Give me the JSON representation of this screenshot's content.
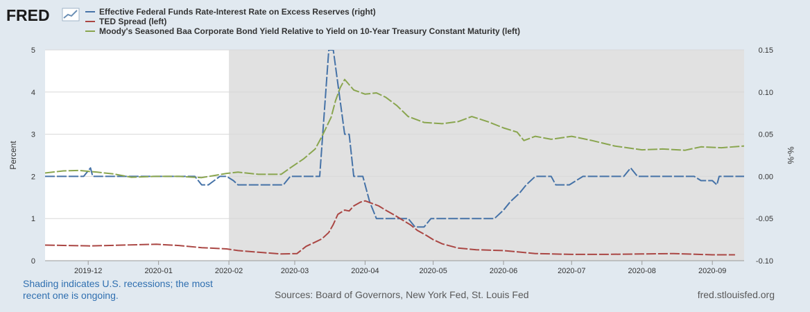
{
  "header": {
    "logo_text": "FRED",
    "logo_icon": "line-chart-icon"
  },
  "legend": [
    {
      "label": "Effective Federal Funds Rate-Interest Rate on Excess Reserves (right)",
      "color": "#4572a7"
    },
    {
      "label": "TED Spread (left)",
      "color": "#aa4643"
    },
    {
      "label": "Moody's Seasoned Baa Corporate Bond Yield Relative to Yield on 10-Year Treasury Constant Maturity (left)",
      "color": "#89a54e"
    }
  ],
  "footer": {
    "note": "Shading indicates U.S. recessions; the most recent one is ongoing.",
    "source": "Sources: Board of Governors, New York Fed, St. Louis Fed",
    "site": "fred.stlouisfed.org"
  },
  "chart_data": {
    "type": "line",
    "ylabel_left": "Percent",
    "ylabel_right": "%-%",
    "ylim_left": [
      0,
      5
    ],
    "ylim_right": [
      -0.1,
      0.15
    ],
    "yticks_left": [
      "0",
      "1",
      "2",
      "3",
      "4",
      "5"
    ],
    "yticks_right": [
      "-0.10",
      "-0.05",
      "0.00",
      "0.05",
      "0.10",
      "0.15"
    ],
    "xlim": [
      "2019-11-12",
      "2020-09-15"
    ],
    "xticks": [
      {
        "date": "2019-12-01",
        "label": "2019-12"
      },
      {
        "date": "2020-01-01",
        "label": "2020-01"
      },
      {
        "date": "2020-02-01",
        "label": "2020-02"
      },
      {
        "date": "2020-03-01",
        "label": "2020-03"
      },
      {
        "date": "2020-04-01",
        "label": "2020-04"
      },
      {
        "date": "2020-05-01",
        "label": "2020-05"
      },
      {
        "date": "2020-06-01",
        "label": "2020-06"
      },
      {
        "date": "2020-07-01",
        "label": "2020-07"
      },
      {
        "date": "2020-08-01",
        "label": "2020-08"
      },
      {
        "date": "2020-09-01",
        "label": "2020-09"
      }
    ],
    "recession": {
      "start": "2020-02-01",
      "end": "2020-09-15",
      "color": "#e1e1e1"
    },
    "grid": true,
    "series": [
      {
        "name": "Effective Federal Funds Rate-Interest Rate on Excess Reserves (right)",
        "axis": "right",
        "color": "#4572a7",
        "points": [
          [
            "2019-11-12",
            0.0
          ],
          [
            "2019-11-29",
            0.0
          ],
          [
            "2019-12-02",
            0.01
          ],
          [
            "2019-12-03",
            0.0
          ],
          [
            "2019-12-20",
            0.0
          ],
          [
            "2020-01-02",
            0.0
          ],
          [
            "2020-01-17",
            0.0
          ],
          [
            "2020-01-20",
            -0.01
          ],
          [
            "2020-01-23",
            -0.01
          ],
          [
            "2020-01-28",
            0.0
          ],
          [
            "2020-01-31",
            0.0
          ],
          [
            "2020-02-03",
            -0.005
          ],
          [
            "2020-02-05",
            -0.01
          ],
          [
            "2020-02-25",
            -0.01
          ],
          [
            "2020-02-28",
            0.0
          ],
          [
            "2020-03-10",
            0.0
          ],
          [
            "2020-03-12",
            0.0
          ],
          [
            "2020-03-16",
            0.15
          ],
          [
            "2020-03-18",
            0.15
          ],
          [
            "2020-03-23",
            0.05
          ],
          [
            "2020-03-25",
            0.05
          ],
          [
            "2020-03-27",
            0.0
          ],
          [
            "2020-03-31",
            0.0
          ],
          [
            "2020-04-03",
            -0.03
          ],
          [
            "2020-04-06",
            -0.05
          ],
          [
            "2020-04-20",
            -0.05
          ],
          [
            "2020-04-23",
            -0.06
          ],
          [
            "2020-04-27",
            -0.06
          ],
          [
            "2020-04-30",
            -0.05
          ],
          [
            "2020-05-28",
            -0.05
          ],
          [
            "2020-06-01",
            -0.04
          ],
          [
            "2020-06-04",
            -0.03
          ],
          [
            "2020-06-08",
            -0.02
          ],
          [
            "2020-06-11",
            -0.01
          ],
          [
            "2020-06-15",
            0.0
          ],
          [
            "2020-06-22",
            0.0
          ],
          [
            "2020-06-24",
            -0.01
          ],
          [
            "2020-06-30",
            -0.01
          ],
          [
            "2020-07-06",
            0.0
          ],
          [
            "2020-07-24",
            0.0
          ],
          [
            "2020-07-27",
            0.01
          ],
          [
            "2020-07-30",
            0.0
          ],
          [
            "2020-08-10",
            0.0
          ],
          [
            "2020-08-24",
            0.0
          ],
          [
            "2020-08-27",
            -0.005
          ],
          [
            "2020-09-01",
            -0.005
          ],
          [
            "2020-09-03",
            -0.01
          ],
          [
            "2020-09-04",
            0.0
          ],
          [
            "2020-09-15",
            0.0
          ]
        ]
      },
      {
        "name": "TED Spread (left)",
        "axis": "left",
        "color": "#aa4643",
        "points": [
          [
            "2019-11-12",
            0.37
          ],
          [
            "2019-11-22",
            0.36
          ],
          [
            "2019-12-02",
            0.35
          ],
          [
            "2019-12-16",
            0.37
          ],
          [
            "2019-12-31",
            0.39
          ],
          [
            "2020-01-10",
            0.36
          ],
          [
            "2020-01-20",
            0.31
          ],
          [
            "2020-01-31",
            0.28
          ],
          [
            "2020-02-05",
            0.24
          ],
          [
            "2020-02-14",
            0.2
          ],
          [
            "2020-02-24",
            0.16
          ],
          [
            "2020-03-02",
            0.17
          ],
          [
            "2020-03-06",
            0.34
          ],
          [
            "2020-03-10",
            0.44
          ],
          [
            "2020-03-13",
            0.52
          ],
          [
            "2020-03-16",
            0.67
          ],
          [
            "2020-03-18",
            0.86
          ],
          [
            "2020-03-20",
            1.1
          ],
          [
            "2020-03-23",
            1.2
          ],
          [
            "2020-03-25",
            1.18
          ],
          [
            "2020-03-27",
            1.3
          ],
          [
            "2020-03-30",
            1.39
          ],
          [
            "2020-04-01",
            1.42
          ],
          [
            "2020-04-03",
            1.38
          ],
          [
            "2020-04-07",
            1.3
          ],
          [
            "2020-04-10",
            1.2
          ],
          [
            "2020-04-14",
            1.08
          ],
          [
            "2020-04-17",
            0.98
          ],
          [
            "2020-04-21",
            0.85
          ],
          [
            "2020-04-24",
            0.72
          ],
          [
            "2020-04-28",
            0.6
          ],
          [
            "2020-05-01",
            0.5
          ],
          [
            "2020-05-05",
            0.4
          ],
          [
            "2020-05-12",
            0.3
          ],
          [
            "2020-05-20",
            0.26
          ],
          [
            "2020-06-01",
            0.24
          ],
          [
            "2020-06-15",
            0.17
          ],
          [
            "2020-07-01",
            0.15
          ],
          [
            "2020-07-15",
            0.15
          ],
          [
            "2020-08-01",
            0.16
          ],
          [
            "2020-08-15",
            0.17
          ],
          [
            "2020-09-01",
            0.14
          ],
          [
            "2020-09-11",
            0.14
          ]
        ]
      },
      {
        "name": "Moody's Seasoned Baa Corporate Bond Yield Relative to Yield on 10-Year Treasury Constant Maturity (left)",
        "axis": "left",
        "color": "#89a54e",
        "points": [
          [
            "2019-11-12",
            2.08
          ],
          [
            "2019-11-20",
            2.13
          ],
          [
            "2019-11-27",
            2.14
          ],
          [
            "2019-12-05",
            2.1
          ],
          [
            "2019-12-12",
            2.06
          ],
          [
            "2019-12-20",
            1.98
          ],
          [
            "2019-12-31",
            2.0
          ],
          [
            "2020-01-10",
            2.0
          ],
          [
            "2020-01-20",
            1.97
          ],
          [
            "2020-01-31",
            2.07
          ],
          [
            "2020-02-05",
            2.1
          ],
          [
            "2020-02-14",
            2.05
          ],
          [
            "2020-02-24",
            2.05
          ],
          [
            "2020-02-28",
            2.2
          ],
          [
            "2020-03-05",
            2.42
          ],
          [
            "2020-03-10",
            2.65
          ],
          [
            "2020-03-13",
            2.95
          ],
          [
            "2020-03-17",
            3.4
          ],
          [
            "2020-03-19",
            3.8
          ],
          [
            "2020-03-21",
            4.1
          ],
          [
            "2020-03-23",
            4.3
          ],
          [
            "2020-03-27",
            4.05
          ],
          [
            "2020-04-01",
            3.95
          ],
          [
            "2020-04-06",
            3.98
          ],
          [
            "2020-04-10",
            3.88
          ],
          [
            "2020-04-15",
            3.68
          ],
          [
            "2020-04-20",
            3.42
          ],
          [
            "2020-04-27",
            3.28
          ],
          [
            "2020-05-05",
            3.25
          ],
          [
            "2020-05-12",
            3.3
          ],
          [
            "2020-05-18",
            3.42
          ],
          [
            "2020-05-25",
            3.3
          ],
          [
            "2020-06-01",
            3.15
          ],
          [
            "2020-06-07",
            3.05
          ],
          [
            "2020-06-10",
            2.85
          ],
          [
            "2020-06-15",
            2.95
          ],
          [
            "2020-06-22",
            2.88
          ],
          [
            "2020-07-01",
            2.95
          ],
          [
            "2020-07-10",
            2.85
          ],
          [
            "2020-07-20",
            2.72
          ],
          [
            "2020-08-01",
            2.63
          ],
          [
            "2020-08-10",
            2.65
          ],
          [
            "2020-08-20",
            2.62
          ],
          [
            "2020-08-27",
            2.7
          ],
          [
            "2020-09-05",
            2.68
          ],
          [
            "2020-09-15",
            2.72
          ]
        ]
      }
    ]
  }
}
